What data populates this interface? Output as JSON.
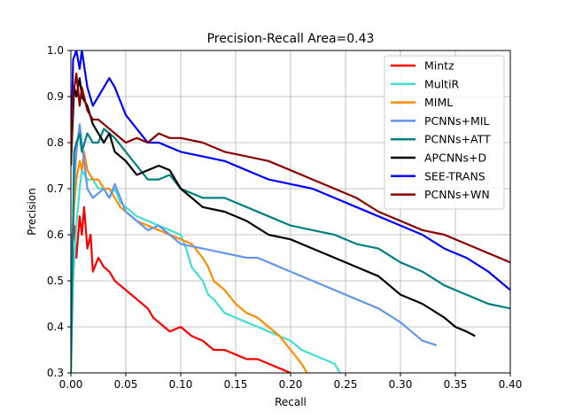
{
  "chart_data": {
    "type": "line",
    "title": "Precision-Recall Area=0.43",
    "xlabel": "Recall",
    "ylabel": "Precision",
    "xlim": [
      0.0,
      0.4
    ],
    "ylim": [
      0.3,
      1.0
    ],
    "xticks": [
      0.0,
      0.05,
      0.1,
      0.15,
      0.2,
      0.25,
      0.3,
      0.35,
      0.4
    ],
    "xtick_labels": [
      "0.00",
      "0.05",
      "0.10",
      "0.15",
      "0.20",
      "0.25",
      "0.30",
      "0.35",
      "0.40"
    ],
    "yticks": [
      0.3,
      0.4,
      0.5,
      0.6,
      0.7,
      0.8,
      0.9,
      1.0
    ],
    "ytick_labels": [
      "0.3",
      "0.4",
      "0.5",
      "0.6",
      "0.7",
      "0.8",
      "0.9",
      "1.0"
    ],
    "grid": true,
    "legend_position": "top-right",
    "series": [
      {
        "name": "Mintz",
        "color": "#ff0000",
        "x": [
          0.0,
          0.003,
          0.005,
          0.008,
          0.01,
          0.012,
          0.015,
          0.018,
          0.02,
          0.025,
          0.03,
          0.035,
          0.04,
          0.045,
          0.05,
          0.055,
          0.06,
          0.065,
          0.07,
          0.075,
          0.08,
          0.085,
          0.09,
          0.1,
          0.11,
          0.12,
          0.13,
          0.14,
          0.15,
          0.16,
          0.17,
          0.18,
          0.19,
          0.2
        ],
        "y": [
          0.58,
          0.62,
          0.55,
          0.64,
          0.6,
          0.66,
          0.57,
          0.6,
          0.52,
          0.55,
          0.53,
          0.52,
          0.5,
          0.49,
          0.48,
          0.47,
          0.46,
          0.45,
          0.44,
          0.42,
          0.41,
          0.4,
          0.39,
          0.4,
          0.38,
          0.37,
          0.35,
          0.35,
          0.34,
          0.33,
          0.33,
          0.32,
          0.31,
          0.3
        ]
      },
      {
        "name": "MultiR",
        "color": "#40e0d0",
        "x": [
          0.0,
          0.002,
          0.005,
          0.008,
          0.01,
          0.015,
          0.02,
          0.025,
          0.03,
          0.035,
          0.04,
          0.045,
          0.05,
          0.06,
          0.07,
          0.08,
          0.09,
          0.1,
          0.105,
          0.11,
          0.12,
          0.125,
          0.13,
          0.14,
          0.15,
          0.16,
          0.17,
          0.18,
          0.19,
          0.2,
          0.21,
          0.22,
          0.23,
          0.24,
          0.245
        ],
        "y": [
          0.3,
          0.5,
          0.62,
          0.7,
          0.74,
          0.72,
          0.72,
          0.7,
          0.7,
          0.68,
          0.7,
          0.67,
          0.66,
          0.64,
          0.63,
          0.62,
          0.61,
          0.6,
          0.57,
          0.53,
          0.5,
          0.47,
          0.46,
          0.43,
          0.42,
          0.41,
          0.4,
          0.39,
          0.38,
          0.37,
          0.35,
          0.34,
          0.33,
          0.32,
          0.3
        ]
      },
      {
        "name": "MIML",
        "color": "#ff8c00",
        "x": [
          0.0,
          0.003,
          0.005,
          0.008,
          0.01,
          0.012,
          0.015,
          0.02,
          0.025,
          0.03,
          0.035,
          0.04,
          0.045,
          0.05,
          0.06,
          0.07,
          0.08,
          0.09,
          0.1,
          0.11,
          0.12,
          0.125,
          0.13,
          0.14,
          0.15,
          0.16,
          0.17,
          0.18,
          0.19,
          0.2,
          0.21,
          0.215
        ],
        "y": [
          0.5,
          0.66,
          0.72,
          0.76,
          0.74,
          0.78,
          0.74,
          0.72,
          0.72,
          0.7,
          0.7,
          0.68,
          0.66,
          0.65,
          0.63,
          0.62,
          0.61,
          0.6,
          0.59,
          0.58,
          0.55,
          0.53,
          0.5,
          0.48,
          0.45,
          0.43,
          0.42,
          0.4,
          0.38,
          0.35,
          0.32,
          0.3
        ]
      },
      {
        "name": "PCNNs+MIL",
        "color": "#6495ed",
        "x": [
          0.0,
          0.003,
          0.005,
          0.008,
          0.01,
          0.015,
          0.02,
          0.025,
          0.03,
          0.035,
          0.04,
          0.05,
          0.06,
          0.07,
          0.08,
          0.1,
          0.12,
          0.14,
          0.16,
          0.17,
          0.18,
          0.2,
          0.22,
          0.24,
          0.26,
          0.28,
          0.3,
          0.31,
          0.32,
          0.333
        ],
        "y": [
          0.5,
          0.7,
          0.78,
          0.84,
          0.8,
          0.7,
          0.68,
          0.69,
          0.7,
          0.68,
          0.71,
          0.65,
          0.63,
          0.61,
          0.62,
          0.58,
          0.57,
          0.56,
          0.55,
          0.55,
          0.54,
          0.52,
          0.5,
          0.48,
          0.46,
          0.44,
          0.41,
          0.39,
          0.37,
          0.36
        ]
      },
      {
        "name": "PCNNs+ATT",
        "color": "#008080",
        "x": [
          0.0,
          0.003,
          0.005,
          0.008,
          0.01,
          0.015,
          0.02,
          0.025,
          0.03,
          0.035,
          0.04,
          0.05,
          0.06,
          0.07,
          0.08,
          0.09,
          0.1,
          0.12,
          0.14,
          0.16,
          0.18,
          0.2,
          0.22,
          0.24,
          0.26,
          0.28,
          0.3,
          0.32,
          0.34,
          0.36,
          0.38,
          0.4
        ],
        "y": [
          0.3,
          0.78,
          0.8,
          0.82,
          0.78,
          0.82,
          0.8,
          0.8,
          0.83,
          0.82,
          0.81,
          0.78,
          0.75,
          0.72,
          0.72,
          0.73,
          0.7,
          0.68,
          0.68,
          0.66,
          0.64,
          0.62,
          0.61,
          0.6,
          0.58,
          0.57,
          0.54,
          0.52,
          0.49,
          0.47,
          0.45,
          0.44
        ]
      },
      {
        "name": "APCNNs+D",
        "color": "#000000",
        "x": [
          0.0,
          0.003,
          0.005,
          0.008,
          0.01,
          0.015,
          0.02,
          0.025,
          0.03,
          0.035,
          0.04,
          0.05,
          0.06,
          0.07,
          0.08,
          0.09,
          0.1,
          0.11,
          0.12,
          0.14,
          0.16,
          0.18,
          0.2,
          0.22,
          0.24,
          0.26,
          0.28,
          0.3,
          0.32,
          0.34,
          0.35,
          0.36,
          0.368
        ],
        "y": [
          0.75,
          0.92,
          0.9,
          0.94,
          0.9,
          0.88,
          0.84,
          0.82,
          0.8,
          0.82,
          0.78,
          0.76,
          0.73,
          0.74,
          0.75,
          0.74,
          0.7,
          0.68,
          0.66,
          0.65,
          0.63,
          0.6,
          0.59,
          0.57,
          0.55,
          0.53,
          0.51,
          0.47,
          0.45,
          0.42,
          0.4,
          0.39,
          0.38
        ]
      },
      {
        "name": "SEE-TRANS",
        "color": "#0000ff",
        "x": [
          0.0,
          0.002,
          0.005,
          0.008,
          0.01,
          0.015,
          0.02,
          0.025,
          0.03,
          0.035,
          0.04,
          0.05,
          0.06,
          0.07,
          0.08,
          0.09,
          0.1,
          0.12,
          0.14,
          0.16,
          0.18,
          0.2,
          0.22,
          0.24,
          0.26,
          0.28,
          0.3,
          0.32,
          0.34,
          0.36,
          0.38,
          0.4
        ],
        "y": [
          0.75,
          0.98,
          1.0,
          0.96,
          1.0,
          0.92,
          0.88,
          0.9,
          0.92,
          0.94,
          0.92,
          0.86,
          0.83,
          0.8,
          0.8,
          0.79,
          0.78,
          0.77,
          0.76,
          0.74,
          0.72,
          0.71,
          0.7,
          0.68,
          0.66,
          0.64,
          0.62,
          0.6,
          0.57,
          0.55,
          0.52,
          0.48
        ]
      },
      {
        "name": "PCNNs+WN",
        "color": "#8b0000",
        "x": [
          0.0,
          0.002,
          0.005,
          0.008,
          0.01,
          0.015,
          0.02,
          0.025,
          0.03,
          0.035,
          0.04,
          0.05,
          0.06,
          0.07,
          0.08,
          0.09,
          0.1,
          0.12,
          0.14,
          0.16,
          0.18,
          0.2,
          0.22,
          0.24,
          0.26,
          0.28,
          0.3,
          0.32,
          0.34,
          0.36,
          0.38,
          0.4
        ],
        "y": [
          0.75,
          0.9,
          0.95,
          0.88,
          0.92,
          0.87,
          0.85,
          0.85,
          0.84,
          0.83,
          0.82,
          0.8,
          0.81,
          0.8,
          0.82,
          0.81,
          0.81,
          0.8,
          0.78,
          0.77,
          0.76,
          0.74,
          0.72,
          0.7,
          0.68,
          0.65,
          0.63,
          0.61,
          0.6,
          0.58,
          0.56,
          0.54
        ]
      }
    ]
  }
}
